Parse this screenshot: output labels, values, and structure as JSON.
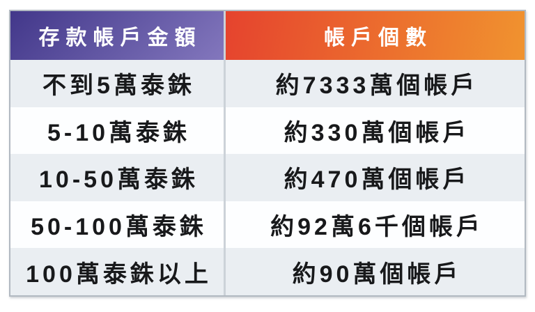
{
  "chart_data": {
    "type": "table",
    "columns": [
      "存款帳戶金額",
      "帳戶個數"
    ],
    "rows": [
      [
        "不到5萬泰銖",
        "約7333萬個帳戶"
      ],
      [
        "5-10萬泰銖",
        "約330萬個帳戶"
      ],
      [
        "10-50萬泰銖",
        "約470萬個帳戶"
      ],
      [
        "50-100萬泰銖",
        "約92萬6千個帳戶"
      ],
      [
        "100萬泰銖以上",
        "約90萬個帳戶"
      ]
    ],
    "legend": null,
    "grid": "row-separated, alternating row shading"
  },
  "colors": {
    "header_left_gradient_start": "#42378a",
    "header_left_gradient_end": "#8377bd",
    "header_right_gradient_start": "#e5432e",
    "header_right_gradient_end": "#f0932f",
    "row_alt": "#eaeef2",
    "row_base": "#fdfeff",
    "body_text": "#18191b",
    "header_text": "#ffffff",
    "divider": "#ccd2d8"
  }
}
